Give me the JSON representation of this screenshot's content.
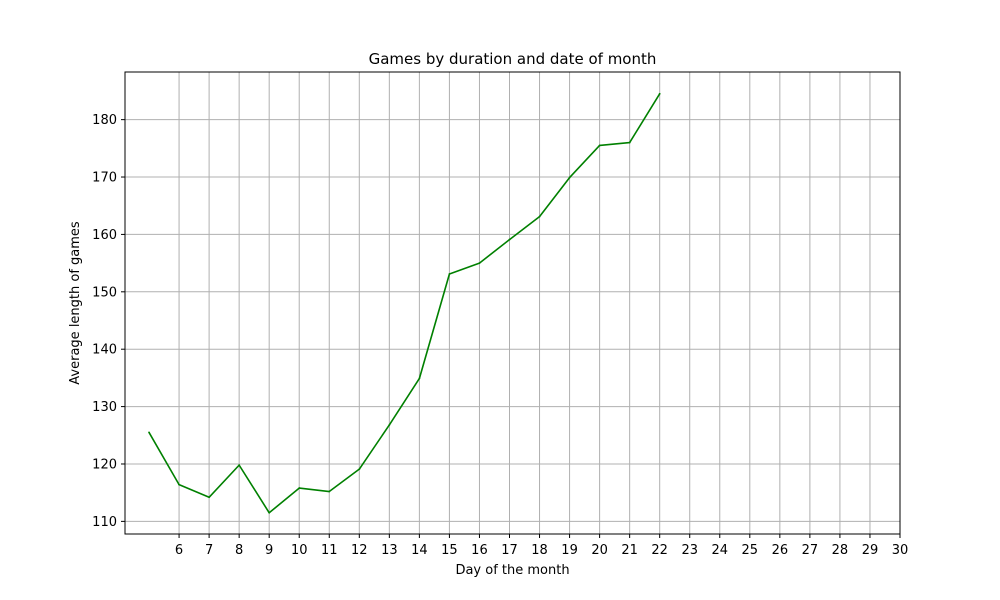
{
  "chart_data": {
    "type": "line",
    "title": "Games by duration and date of month",
    "xlabel": "Day of the month",
    "ylabel": "Average length of games",
    "xlim": [
      4.2,
      30
    ],
    "ylim": [
      107.8,
      188.3
    ],
    "xticks": [
      6,
      7,
      8,
      9,
      10,
      11,
      12,
      13,
      14,
      15,
      16,
      17,
      18,
      19,
      20,
      21,
      22,
      23,
      24,
      25,
      26,
      27,
      28,
      29,
      30
    ],
    "yticks": [
      110,
      120,
      130,
      140,
      150,
      160,
      170,
      180
    ],
    "grid": true,
    "legend": null,
    "series": [
      {
        "color": "#008000",
        "x": [
          5,
          6,
          7,
          8,
          9,
          10,
          11,
          12,
          13,
          14,
          15,
          16,
          17,
          18,
          19,
          20,
          21,
          22
        ],
        "y": [
          125.5,
          116.4,
          114.2,
          119.8,
          111.5,
          115.8,
          115.2,
          119.1,
          126.8,
          134.9,
          153.1,
          155.0,
          159.1,
          163.1,
          169.9,
          175.5,
          176.0,
          184.5
        ]
      }
    ]
  }
}
